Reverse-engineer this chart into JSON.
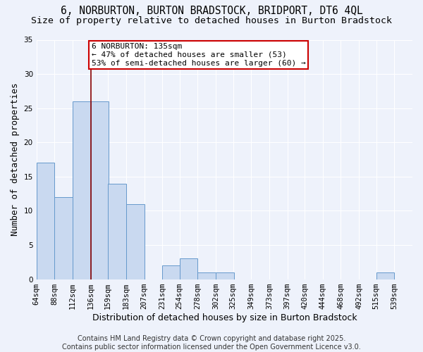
{
  "title_line1": "6, NORBURTON, BURTON BRADSTOCK, BRIDPORT, DT6 4QL",
  "title_line2": "Size of property relative to detached houses in Burton Bradstock",
  "xlabel": "Distribution of detached houses by size in Burton Bradstock",
  "ylabel": "Number of detached properties",
  "bins": [
    64,
    88,
    112,
    136,
    159,
    183,
    207,
    231,
    254,
    278,
    302,
    325,
    349,
    373,
    397,
    420,
    444,
    468,
    492,
    515,
    539
  ],
  "counts": [
    17,
    12,
    26,
    26,
    14,
    11,
    0,
    2,
    3,
    1,
    1,
    0,
    0,
    0,
    0,
    0,
    0,
    0,
    0,
    1,
    0
  ],
  "bar_color": "#c9d9f0",
  "bar_edge_color": "#6699cc",
  "property_line_x": 136,
  "property_line_color": "#880000",
  "annotation_text": "6 NORBURTON: 135sqm\n← 47% of detached houses are smaller (53)\n53% of semi-detached houses are larger (60) →",
  "annotation_box_color": "#ffffff",
  "annotation_box_edge_color": "#cc0000",
  "ylim": [
    0,
    35
  ],
  "yticks": [
    0,
    5,
    10,
    15,
    20,
    25,
    30,
    35
  ],
  "background_color": "#eef2fb",
  "plot_bg_color": "#eef2fb",
  "grid_color": "#ffffff",
  "footer_text": "Contains HM Land Registry data © Crown copyright and database right 2025.\nContains public sector information licensed under the Open Government Licence v3.0.",
  "title_fontsize": 10.5,
  "subtitle_fontsize": 9.5,
  "axis_label_fontsize": 9,
  "tick_fontsize": 7.5,
  "annotation_fontsize": 8,
  "footer_fontsize": 7
}
